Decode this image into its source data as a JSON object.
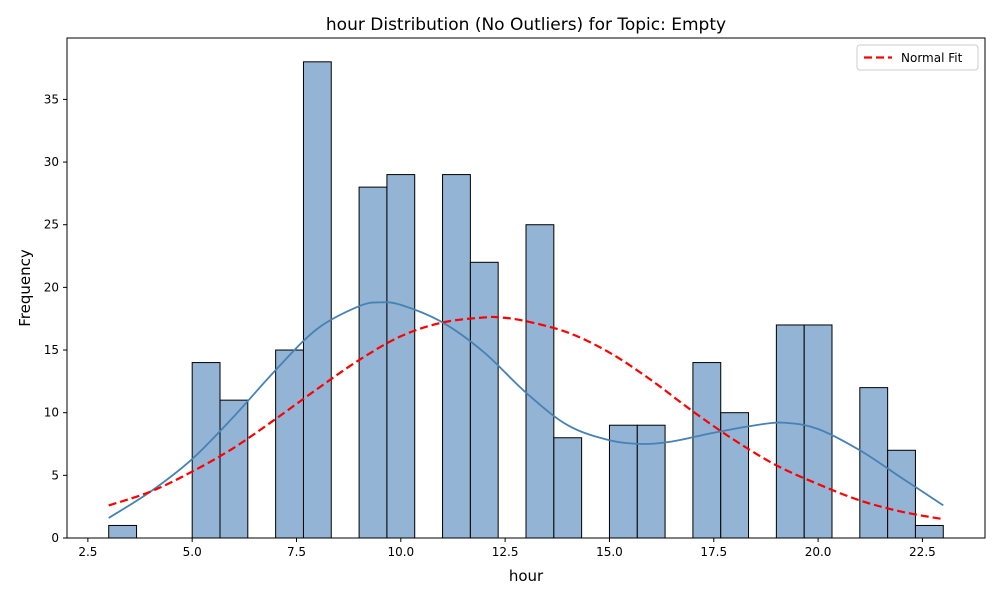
{
  "chart_data": {
    "type": "bar",
    "title": "hour Distribution (No Outliers) for Topic: Empty",
    "xlabel": "hour",
    "ylabel": "Frequency",
    "xlim": [
      2.0,
      24.0
    ],
    "ylim": [
      0,
      39.9
    ],
    "xticks": [
      2.5,
      5.0,
      7.5,
      10.0,
      12.5,
      15.0,
      17.5,
      20.0,
      22.5
    ],
    "xtick_labels": [
      "2.5",
      "5.0",
      "7.5",
      "10.0",
      "12.5",
      "15.0",
      "17.5",
      "20.0",
      "22.5"
    ],
    "yticks": [
      0,
      5,
      10,
      15,
      20,
      25,
      30,
      35
    ],
    "ytick_labels": [
      "0",
      "5",
      "10",
      "15",
      "20",
      "25",
      "30",
      "35"
    ],
    "bin_edges": [
      3.0,
      3.667,
      4.333,
      5.0,
      5.667,
      6.333,
      7.0,
      7.667,
      8.333,
      9.0,
      9.667,
      10.333,
      11.0,
      11.667,
      12.333,
      13.0,
      13.667,
      14.333,
      15.0,
      15.667,
      16.333,
      17.0,
      17.667,
      18.333,
      19.0,
      19.667,
      20.333,
      21.0,
      21.667,
      22.333,
      23.0
    ],
    "bin_counts": [
      1,
      0,
      0,
      14,
      11,
      0,
      15,
      38,
      0,
      28,
      29,
      0,
      29,
      22,
      0,
      25,
      8,
      0,
      9,
      9,
      0,
      14,
      10,
      0,
      17,
      17,
      0,
      12,
      7,
      1
    ],
    "kde": {
      "x": [
        3,
        4,
        5,
        6,
        7,
        8,
        9,
        9.5,
        10,
        11,
        12,
        13,
        14,
        15,
        15.8,
        16.5,
        17.5,
        18.5,
        19.2,
        20,
        21,
        22,
        23
      ],
      "y": [
        1.6,
        3.7,
        6.3,
        9.7,
        13.4,
        16.7,
        18.5,
        18.8,
        18.6,
        17.2,
        14.8,
        11.6,
        9.0,
        7.8,
        7.5,
        7.7,
        8.4,
        9.0,
        9.2,
        8.7,
        7.0,
        4.8,
        2.6
      ]
    },
    "normal_fit": {
      "name": "Normal Fit",
      "x": [
        3,
        4,
        5,
        6,
        7,
        8,
        9,
        10,
        11,
        12,
        12.4,
        13,
        14,
        15,
        16,
        17,
        18,
        19,
        20,
        21,
        22,
        23
      ],
      "y": [
        2.6,
        3.7,
        5.3,
        7.2,
        9.5,
        11.9,
        14.2,
        16.1,
        17.2,
        17.6,
        17.6,
        17.3,
        16.4,
        14.8,
        12.6,
        10.1,
        7.8,
        5.8,
        4.3,
        3.0,
        2.1,
        1.5
      ]
    },
    "legend_position": "top-right",
    "colors": {
      "bar_fill": "#93b4d4",
      "bar_edge": "#000000",
      "kde_line": "#4682b4",
      "normal_line": "#ff0000"
    },
    "grid": false
  }
}
